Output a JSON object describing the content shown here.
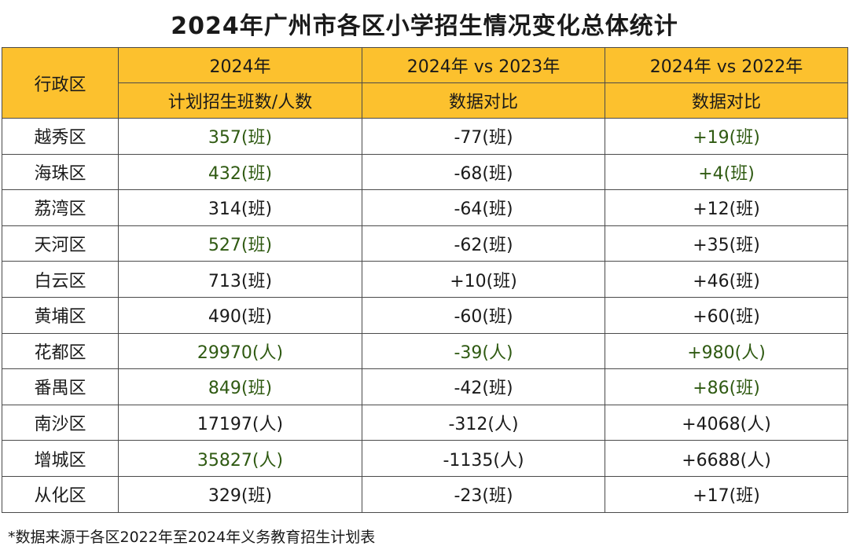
{
  "title": "2024年广州市各区小学招生情况变化总体统计",
  "headers": {
    "district": "行政区",
    "col1_top": "2024年",
    "col1_sub": "计划招生班数/人数",
    "col2_top": "2024年 vs 2023年",
    "col2_sub": "数据对比",
    "col3_top": "2024年 vs 2022年",
    "col3_sub": "数据对比"
  },
  "rows": [
    {
      "district": "越秀区",
      "plan": "357(班)",
      "vs2023": "-77(班)",
      "vs2022": "+19(班)"
    },
    {
      "district": "海珠区",
      "plan": "432(班)",
      "vs2023": "-68(班)",
      "vs2022": "+4(班)"
    },
    {
      "district": "荔湾区",
      "plan": "314(班)",
      "vs2023": "-64(班)",
      "vs2022": "+12(班)"
    },
    {
      "district": "天河区",
      "plan": "527(班)",
      "vs2023": "-62(班)",
      "vs2022": "+35(班)"
    },
    {
      "district": "白云区",
      "plan": "713(班)",
      "vs2023": "+10(班)",
      "vs2022": "+46(班)"
    },
    {
      "district": "黄埔区",
      "plan": "490(班)",
      "vs2023": "-60(班)",
      "vs2022": "+60(班)"
    },
    {
      "district": "花都区",
      "plan": "29970(人)",
      "vs2023": "-39(人)",
      "vs2022": "+980(人)"
    },
    {
      "district": "番禺区",
      "plan": "849(班)",
      "vs2023": "-42(班)",
      "vs2022": "+86(班)"
    },
    {
      "district": "南沙区",
      "plan": "17197(人)",
      "vs2023": "-312(人)",
      "vs2022": "+4068(人)"
    },
    {
      "district": "增城区",
      "plan": "35827(人)",
      "vs2023": "-1135(人)",
      "vs2022": "+6688(人)"
    },
    {
      "district": "从化区",
      "plan": "329(班)",
      "vs2023": "-23(班)",
      "vs2022": "+17(班)"
    }
  ],
  "footnote": "*数据来源于各区2022年至2024年义务教育招生计划表"
}
